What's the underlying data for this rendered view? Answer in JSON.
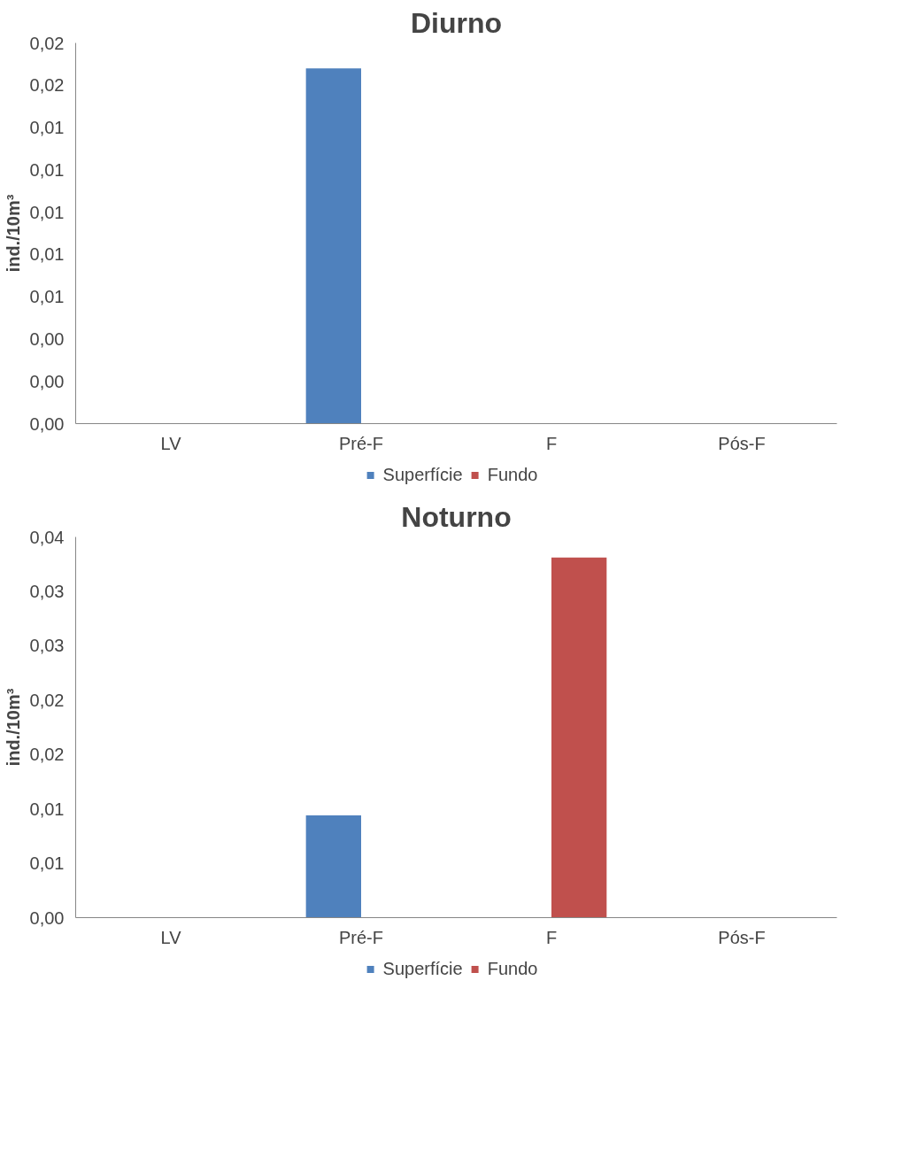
{
  "chart_data": [
    {
      "type": "bar",
      "title": "Diurno",
      "ylabel": "ind./10m³",
      "categories": [
        "LV",
        "Pré-F",
        "F",
        "Pós-F"
      ],
      "series": [
        {
          "name": "Superfície",
          "color": "#4f81bd",
          "values": [
            0,
            0.0168,
            0,
            0
          ]
        },
        {
          "name": "Fundo",
          "color": "#c0504d",
          "values": [
            0,
            0,
            0,
            0
          ]
        }
      ],
      "ylim": [
        0,
        0.018
      ],
      "yticks": [
        {
          "value": 0,
          "label": "0,00"
        },
        {
          "value": 0.002,
          "label": "0,00"
        },
        {
          "value": 0.004,
          "label": "0,00"
        },
        {
          "value": 0.006,
          "label": "0,01"
        },
        {
          "value": 0.008,
          "label": "0,01"
        },
        {
          "value": 0.01,
          "label": "0,01"
        },
        {
          "value": 0.012,
          "label": "0,01"
        },
        {
          "value": 0.014,
          "label": "0,01"
        },
        {
          "value": 0.016,
          "label": "0,02"
        },
        {
          "value": 0.018,
          "label": "0,02"
        }
      ],
      "legend": "bottom"
    },
    {
      "type": "bar",
      "title": "Noturno",
      "ylabel": "ind./10m³",
      "categories": [
        "LV",
        "Pré-F",
        "F",
        "Pós-F"
      ],
      "series": [
        {
          "name": "Superfície",
          "color": "#4f81bd",
          "values": [
            0,
            0.0094,
            0,
            0
          ]
        },
        {
          "name": "Fundo",
          "color": "#c0504d",
          "values": [
            0,
            0,
            0.0331,
            0
          ]
        }
      ],
      "ylim": [
        0,
        0.035
      ],
      "yticks": [
        {
          "value": 0,
          "label": "0,00"
        },
        {
          "value": 0.005,
          "label": "0,01"
        },
        {
          "value": 0.01,
          "label": "0,01"
        },
        {
          "value": 0.015,
          "label": "0,02"
        },
        {
          "value": 0.02,
          "label": "0,02"
        },
        {
          "value": 0.025,
          "label": "0,03"
        },
        {
          "value": 0.03,
          "label": "0,03"
        },
        {
          "value": 0.035,
          "label": "0,04"
        }
      ],
      "legend": "bottom"
    }
  ]
}
